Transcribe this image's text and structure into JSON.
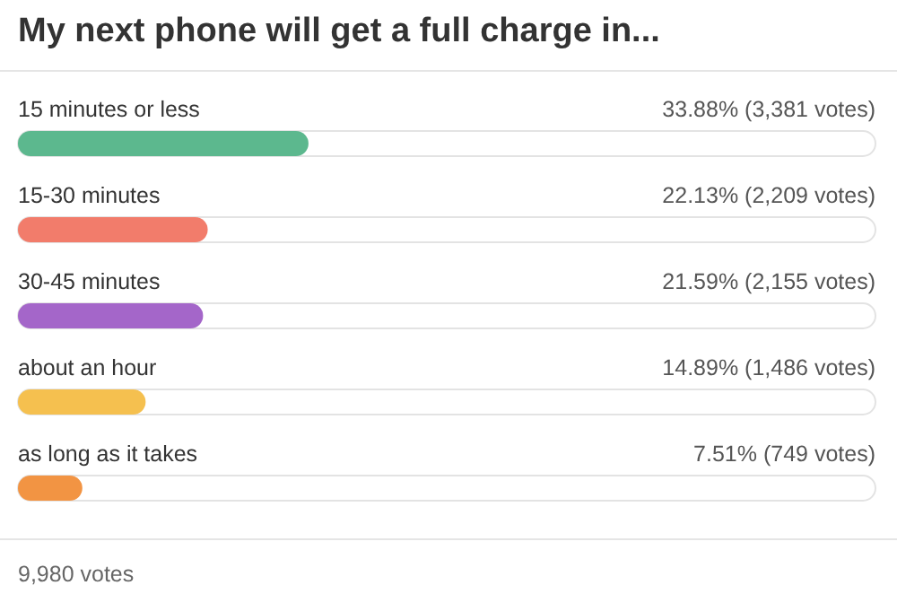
{
  "chart_data": {
    "type": "bar",
    "orientation": "horizontal",
    "title": "My next phone will get a full charge in...",
    "categories": [
      "15 minutes or less",
      "15-30 minutes",
      "30-45 minutes",
      "about an hour",
      "as long as it takes"
    ],
    "values": [
      33.88,
      22.13,
      21.59,
      14.89,
      7.51
    ],
    "value_labels": [
      "33.88% (3,381 votes)",
      "22.13% (2,209 votes)",
      "21.59% (2,155 votes)",
      "14.89% (1,486 votes)",
      "7.51% (749 votes)"
    ],
    "colors": [
      "#5cb88e",
      "#f27c6b",
      "#a466c9",
      "#f5c04f",
      "#f29443"
    ],
    "xlim": [
      0,
      100
    ],
    "tick_labels": "y",
    "annotations": [
      "9,980 votes"
    ]
  }
}
